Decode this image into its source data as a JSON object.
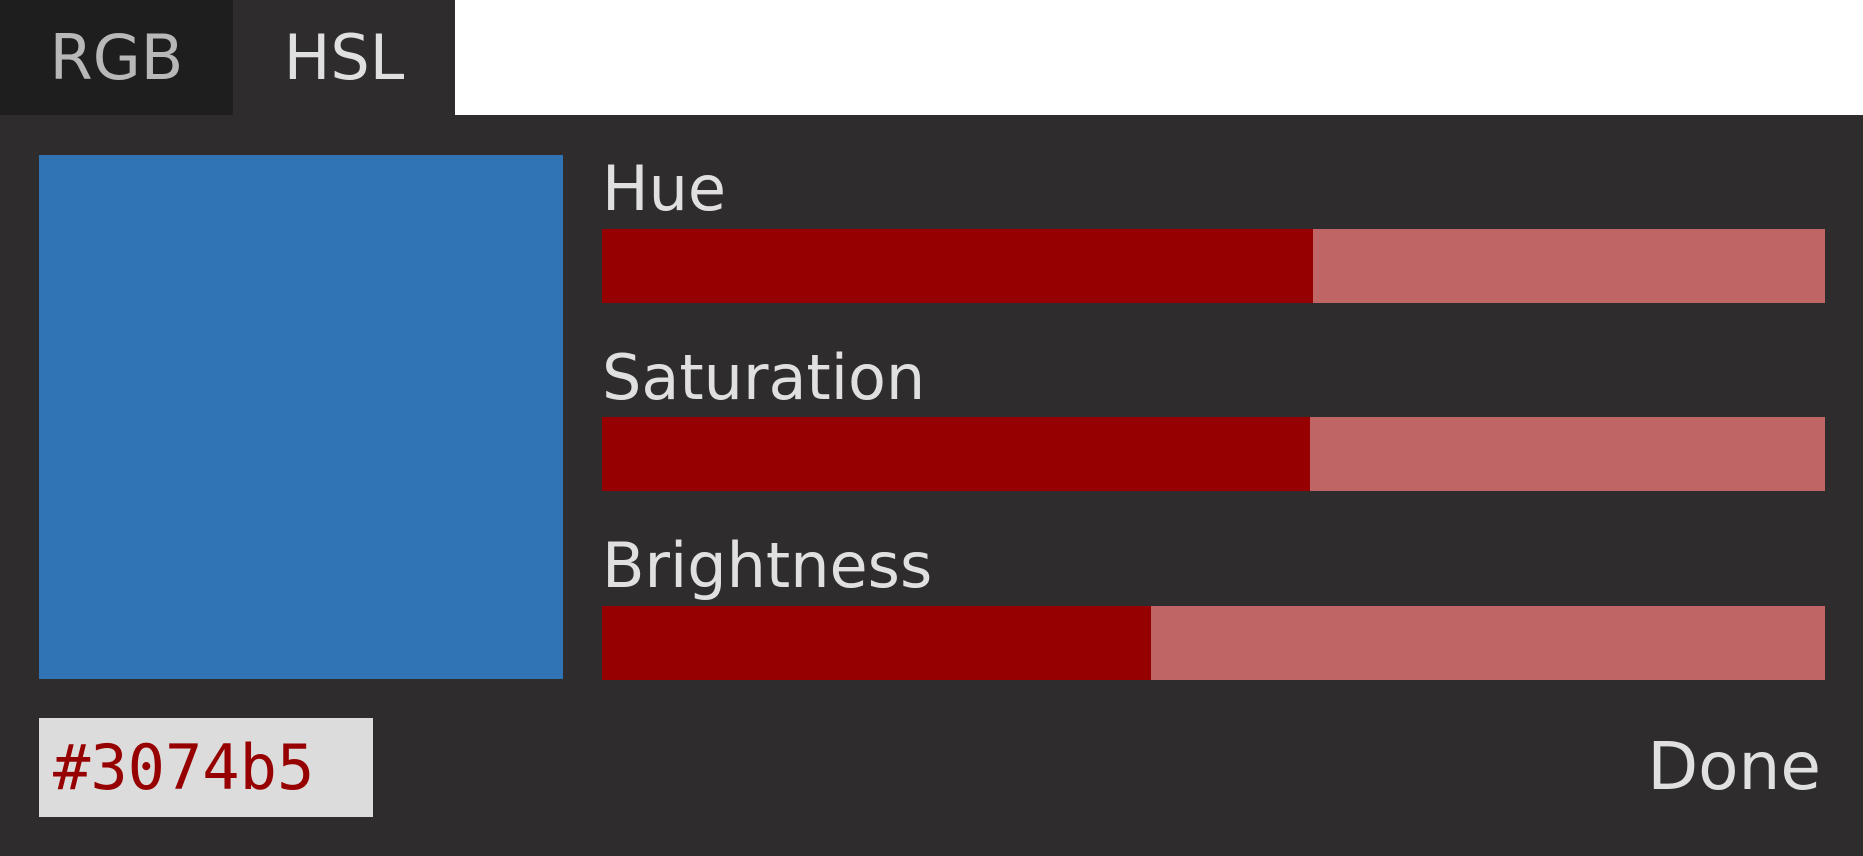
{
  "tabs": [
    {
      "label": "RGB",
      "active": false
    },
    {
      "label": "HSL",
      "active": true
    }
  ],
  "color": {
    "hex": "#3074b5"
  },
  "sliders": [
    {
      "label": "Hue",
      "fraction": 0.581
    },
    {
      "label": "Saturation",
      "fraction": 0.579
    },
    {
      "label": "Brightness",
      "fraction": 0.449
    }
  ],
  "colors": {
    "fill": "#970000",
    "track": "#c06565",
    "hex_text": "#970000"
  },
  "done_label": "Done"
}
